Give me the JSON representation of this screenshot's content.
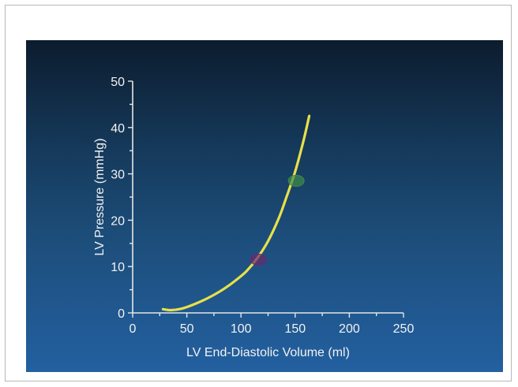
{
  "chart_data": {
    "type": "line",
    "xlabel": "LV End-Diastolic Volume (ml)",
    "ylabel": "LV Pressure (mmHg)",
    "xlim": [
      0,
      250
    ],
    "ylim": [
      0,
      50
    ],
    "xticks": [
      0,
      50,
      100,
      150,
      200,
      250
    ],
    "yticks": [
      0,
      10,
      20,
      30,
      40,
      50
    ],
    "grid": false,
    "series": [
      {
        "color": "#e8e04a",
        "x": [
          28,
          35,
          45,
          55,
          65,
          75,
          85,
          95,
          105,
          115,
          125,
          135,
          142,
          150,
          157,
          163
        ],
        "y": [
          0.8,
          0.6,
          0.9,
          1.7,
          2.7,
          3.9,
          5.3,
          7.0,
          9.0,
          11.8,
          15.5,
          20.5,
          25.0,
          30.5,
          36.5,
          42.5
        ]
      }
    ],
    "markers": [
      {
        "x": 116,
        "y": 11.5,
        "color": "#6a2a6e"
      },
      {
        "x": 151,
        "y": 28.5,
        "color": "#3f8a4a"
      }
    ]
  }
}
